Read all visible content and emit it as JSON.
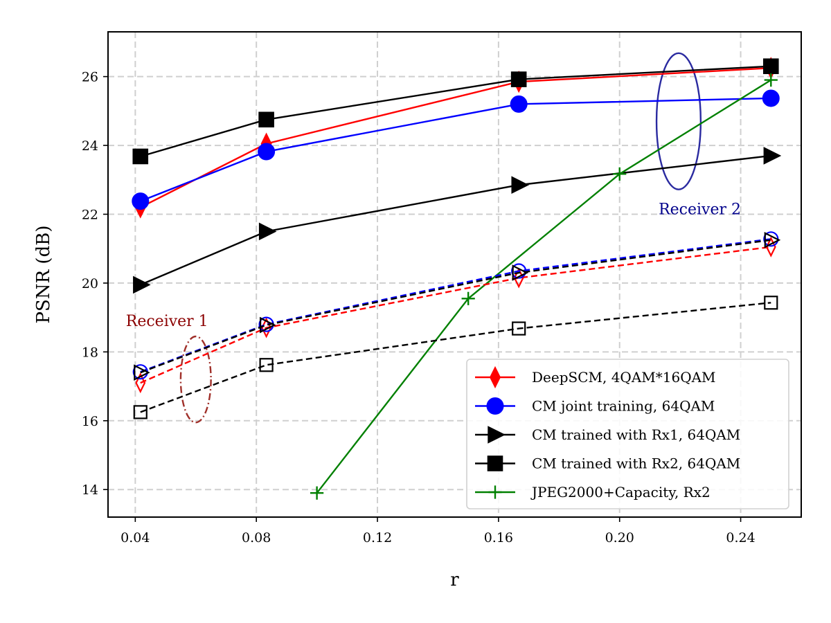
{
  "chart_data": {
    "type": "line",
    "title": "",
    "xlabel": "r",
    "ylabel": "PSNR (dB)",
    "xlim": [
      0.031,
      0.26
    ],
    "ylim": [
      13.2,
      27.3
    ],
    "xticks": [
      0.04,
      0.08,
      0.12,
      0.16,
      0.2,
      0.24
    ],
    "xtick_labels": [
      "0.04",
      "0.08",
      "0.12",
      "0.16",
      "0.20",
      "0.24"
    ],
    "yticks": [
      14,
      16,
      18,
      20,
      22,
      24,
      26
    ],
    "ytick_labels": [
      "14",
      "16",
      "18",
      "20",
      "22",
      "24",
      "26"
    ],
    "grid": true,
    "legend_position": "lower-right",
    "series": [
      {
        "name": "DeepSCM, 4QAM*16QAM",
        "receiver": "Rx2",
        "color": "#ff0000",
        "linestyle": "solid",
        "marker": "thin_diamond",
        "filled": true,
        "x": [
          0.0417,
          0.0833,
          0.1667,
          0.25
        ],
        "y": [
          22.2,
          24.05,
          25.85,
          26.25
        ],
        "in_legend": true
      },
      {
        "name": "CM joint training, 64QAM",
        "receiver": "Rx2",
        "color": "#0000ff",
        "linestyle": "solid",
        "marker": "circle",
        "filled": true,
        "x": [
          0.0417,
          0.0833,
          0.1667,
          0.25
        ],
        "y": [
          22.38,
          23.82,
          25.2,
          25.37
        ],
        "in_legend": true
      },
      {
        "name": "CM trained with Rx1, 64QAM",
        "receiver": "Rx2",
        "color": "#000000",
        "linestyle": "solid",
        "marker": "triangle_right",
        "filled": true,
        "x": [
          0.0417,
          0.0833,
          0.1667,
          0.25
        ],
        "y": [
          19.95,
          21.5,
          22.85,
          23.7
        ],
        "in_legend": true
      },
      {
        "name": "CM trained with Rx2, 64QAM",
        "receiver": "Rx2",
        "color": "#000000",
        "linestyle": "solid",
        "marker": "square",
        "filled": true,
        "x": [
          0.0417,
          0.0833,
          0.1667,
          0.25
        ],
        "y": [
          23.68,
          24.75,
          25.92,
          26.3
        ],
        "in_legend": true
      },
      {
        "name": "JPEG2000+Capacity, Rx2",
        "receiver": "Rx2",
        "color": "#008000",
        "linestyle": "solid",
        "marker": "plus",
        "filled": true,
        "x": [
          0.1,
          0.15,
          0.2,
          0.25
        ],
        "y": [
          13.9,
          19.55,
          23.17,
          25.9
        ],
        "in_legend": true
      },
      {
        "name": "DeepSCM, 4QAM*16QAM (Rx1)",
        "receiver": "Rx1",
        "color": "#ff0000",
        "linestyle": "dashed",
        "marker": "thin_diamond",
        "filled": false,
        "x": [
          0.0417,
          0.0833,
          0.1667,
          0.25
        ],
        "y": [
          17.1,
          18.7,
          20.15,
          21.05
        ],
        "in_legend": false
      },
      {
        "name": "CM joint training, 64QAM (Rx1)",
        "receiver": "Rx1",
        "color": "#0000ff",
        "linestyle": "dashed",
        "marker": "circle",
        "filled": false,
        "x": [
          0.0417,
          0.0833,
          0.1667,
          0.25
        ],
        "y": [
          17.42,
          18.8,
          20.35,
          21.28
        ],
        "in_legend": false
      },
      {
        "name": "CM trained with Rx1, 64QAM (Rx1)",
        "receiver": "Rx1",
        "color": "#000000",
        "linestyle": "dashed",
        "marker": "triangle_right",
        "filled": false,
        "x": [
          0.0417,
          0.0833,
          0.1667,
          0.25
        ],
        "y": [
          17.4,
          18.78,
          20.3,
          21.25
        ],
        "in_legend": false
      },
      {
        "name": "CM trained with Rx2, 64QAM (Rx1)",
        "receiver": "Rx1",
        "color": "#000000",
        "linestyle": "dashed",
        "marker": "square",
        "filled": false,
        "x": [
          0.0417,
          0.0833,
          0.1667,
          0.25
        ],
        "y": [
          16.25,
          17.62,
          18.68,
          19.43
        ],
        "in_legend": false
      }
    ],
    "annotations": [
      {
        "text": "Receiver 1",
        "color": "#8b0000",
        "x": 0.0505,
        "y": 18.75,
        "ellipse_x": 0.06,
        "ellipse_y": 17.2,
        "ellipse_rx": 0.005,
        "ellipse_ry": 1.25,
        "ellipse_color": "#a0302a",
        "ellipse_style": "dashdot"
      },
      {
        "text": "Receiver 2",
        "color": "#00008b",
        "x": 0.2265,
        "y": 22.0,
        "ellipse_x": 0.2195,
        "ellipse_y": 24.7,
        "ellipse_rx": 0.0073,
        "ellipse_ry": 1.98,
        "ellipse_color": "#2a2aa0",
        "ellipse_style": "solid"
      }
    ]
  }
}
